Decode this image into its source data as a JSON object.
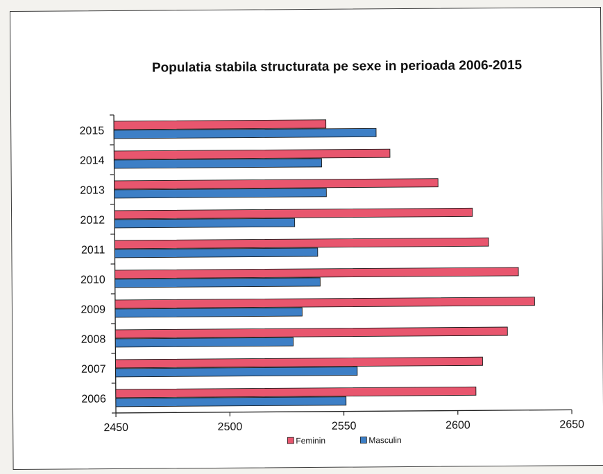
{
  "chart_data": {
    "type": "bar",
    "orientation": "horizontal",
    "title": "Populatia stabila structurata pe sexe in perioada 2006-2015",
    "categories": [
      "2015",
      "2014",
      "2013",
      "2012",
      "2011",
      "2010",
      "2009",
      "2008",
      "2007",
      "2006"
    ],
    "series": [
      {
        "name": "Feminin",
        "color": "#e8566e",
        "values": [
          2543,
          2571,
          2592,
          2607,
          2614,
          2627,
          2634,
          2622,
          2611,
          2608
        ]
      },
      {
        "name": "Masculin",
        "color": "#3d7fc6",
        "values": [
          2565,
          2541,
          2543,
          2529,
          2539,
          2540,
          2532,
          2528,
          2556,
          2551
        ]
      }
    ],
    "xlim": [
      2450,
      2650
    ],
    "xticks": [
      "2450",
      "2500",
      "2550",
      "2600",
      "2650"
    ],
    "grid": false,
    "legend_position": "bottom"
  }
}
